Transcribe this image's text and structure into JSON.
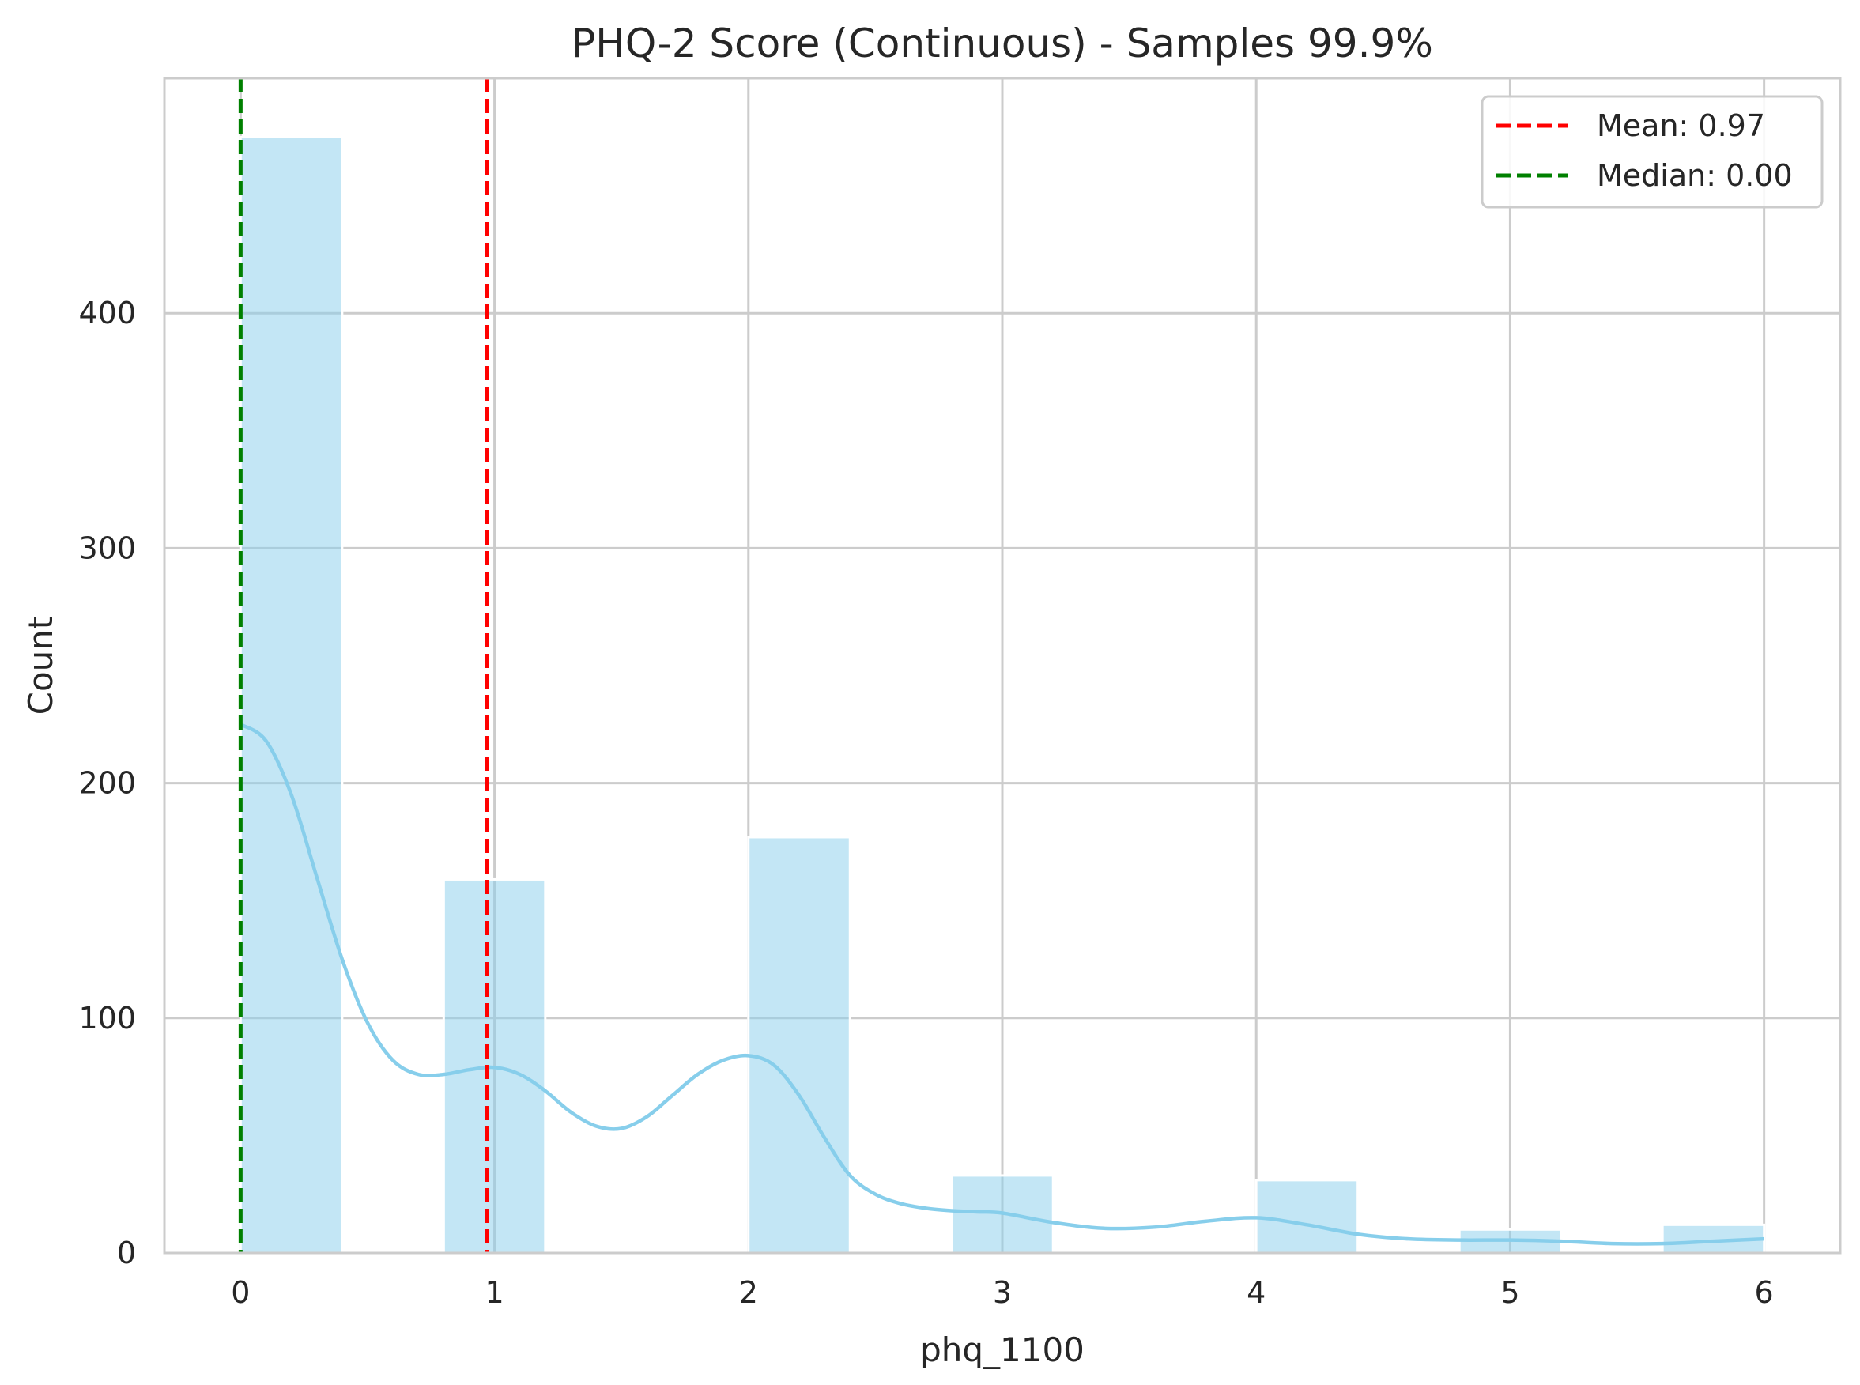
{
  "chart_data": {
    "type": "bar",
    "title": "PHQ-2 Score (Continuous) - Samples 99.9%",
    "xlabel": "phq_1100",
    "ylabel": "Count",
    "xlim": [
      -0.3,
      6.3
    ],
    "ylim": [
      0,
      500
    ],
    "x_ticks": [
      0,
      1,
      2,
      3,
      4,
      5,
      6
    ],
    "y_ticks": [
      0,
      100,
      200,
      300,
      400
    ],
    "grid": true,
    "bar_color": "#87ceeb",
    "bars": [
      {
        "x_start": 0.0,
        "x_end": 0.4,
        "value": 475
      },
      {
        "x_start": 0.8,
        "x_end": 1.2,
        "value": 159
      },
      {
        "x_start": 2.0,
        "x_end": 2.4,
        "value": 177
      },
      {
        "x_start": 2.8,
        "x_end": 3.2,
        "value": 33
      },
      {
        "x_start": 4.0,
        "x_end": 4.4,
        "value": 31
      },
      {
        "x_start": 4.8,
        "x_end": 5.2,
        "value": 10
      },
      {
        "x_start": 5.6,
        "x_end": 6.0,
        "value": 12
      }
    ],
    "kde": {
      "color": "#87ceeb",
      "x": [
        0,
        0.1,
        0.2,
        0.3,
        0.4,
        0.5,
        0.6,
        0.7,
        0.8,
        0.9,
        1.0,
        1.1,
        1.2,
        1.3,
        1.4,
        1.5,
        1.6,
        1.7,
        1.8,
        1.9,
        2.0,
        2.1,
        2.2,
        2.3,
        2.4,
        2.5,
        2.6,
        2.7,
        2.8,
        2.9,
        3.0,
        3.2,
        3.4,
        3.6,
        3.8,
        4.0,
        4.2,
        4.4,
        4.6,
        4.8,
        5.0,
        5.2,
        5.4,
        5.6,
        5.8,
        6.0
      ],
      "y": [
        225,
        218,
        195,
        160,
        125,
        98,
        82,
        76,
        76,
        78,
        79,
        76,
        69,
        60,
        54,
        53,
        58,
        67,
        76,
        82,
        84,
        80,
        67,
        49,
        33,
        25,
        21,
        19,
        18,
        17.5,
        17,
        13,
        10.5,
        11,
        13.5,
        15,
        12,
        8,
        6,
        5.5,
        5.5,
        5,
        4,
        4,
        5,
        6
      ]
    },
    "reference_lines": [
      {
        "label": "Mean: 0.97",
        "value": 0.97,
        "color": "#ff0000",
        "style": "dashed"
      },
      {
        "label": "Median: 0.00",
        "value": 0.0,
        "color": "#008000",
        "style": "dashed"
      }
    ],
    "legend_position": "top-right"
  }
}
